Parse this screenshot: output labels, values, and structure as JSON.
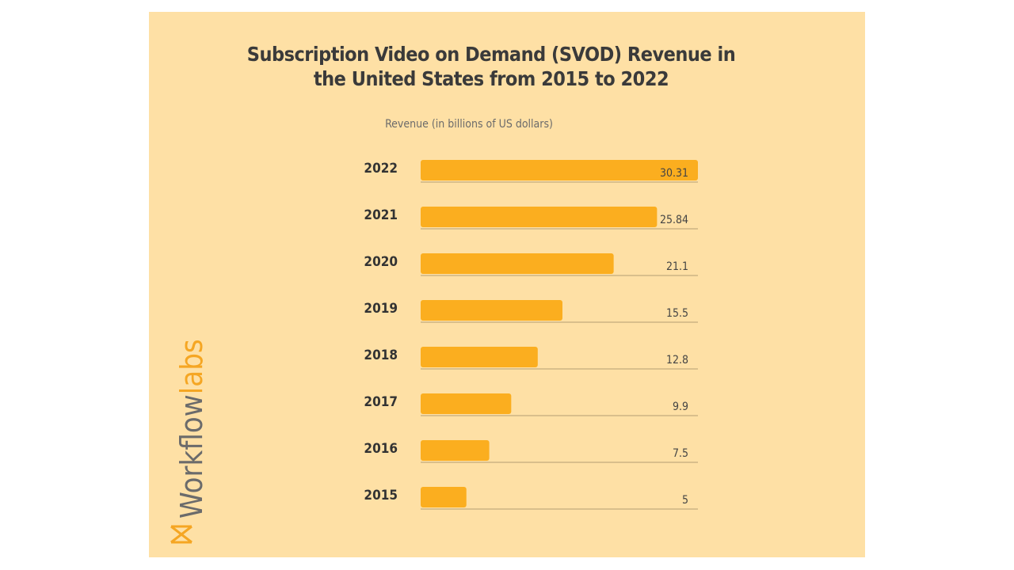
{
  "chart_data": {
    "type": "bar",
    "orientation": "horizontal",
    "title": "Subscription Video on Demand (SVOD) Revenue in the United States from 2015 to 2022",
    "subtitle": "Revenue (in billions of US dollars)",
    "categories": [
      "2022",
      "2021",
      "2020",
      "2019",
      "2018",
      "2017",
      "2016",
      "2015"
    ],
    "values": [
      30.31,
      25.84,
      21.1,
      15.5,
      12.8,
      9.9,
      7.5,
      5
    ],
    "color": "#fbae1f"
  },
  "logo": {
    "first": "Workflow",
    "second": "labs"
  }
}
